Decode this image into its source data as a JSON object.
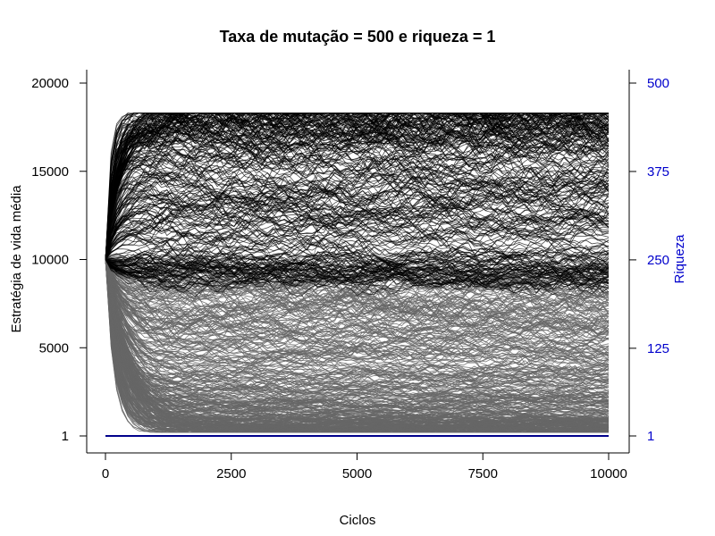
{
  "chart_data": {
    "type": "line",
    "title": "Taxa de mutação = 500 e riqueza = 1",
    "xlabel": "Ciclos",
    "ylabel": "Estratégia de vida média",
    "y2label": "Riqueza",
    "xlim": [
      0,
      10000
    ],
    "ylim": [
      1,
      20000
    ],
    "y2lim": [
      1,
      500
    ],
    "xticks": [
      0,
      2500,
      5000,
      7500,
      10000
    ],
    "xtick_labels": [
      "0",
      "2500",
      "5000",
      "7500",
      "10000"
    ],
    "yticks": [
      1,
      5000,
      10000,
      15000,
      20000
    ],
    "ytick_labels": [
      "1",
      "5000",
      "10000",
      "15000",
      "20000"
    ],
    "y2ticks": [
      1,
      125,
      250,
      375,
      500
    ],
    "y2tick_labels": [
      "1",
      "125",
      "250",
      "375",
      "500"
    ],
    "grid": false,
    "colors": {
      "strategy_high": "#000000",
      "strategy_low": "#666666",
      "riqueza": "#00008b",
      "right_axis": "#0000cc"
    },
    "series_groups": [
      {
        "description_key": "high-strategy trajectories",
        "color": "#000000",
        "start": 10000,
        "count": 260,
        "plateau_range": [
          9000,
          18300
        ],
        "upper_cluster": 18000
      },
      {
        "description_key": "low-strategy trajectories",
        "color": "#666666",
        "start": 10000,
        "count": 380,
        "plateau_range": [
          300,
          9500
        ]
      }
    ],
    "series": [
      {
        "axis": "right",
        "color": "#00008b",
        "x": [
          0,
          2500,
          5000,
          7500,
          10000
        ],
        "values": [
          1,
          1,
          1,
          1,
          1
        ]
      }
    ]
  }
}
